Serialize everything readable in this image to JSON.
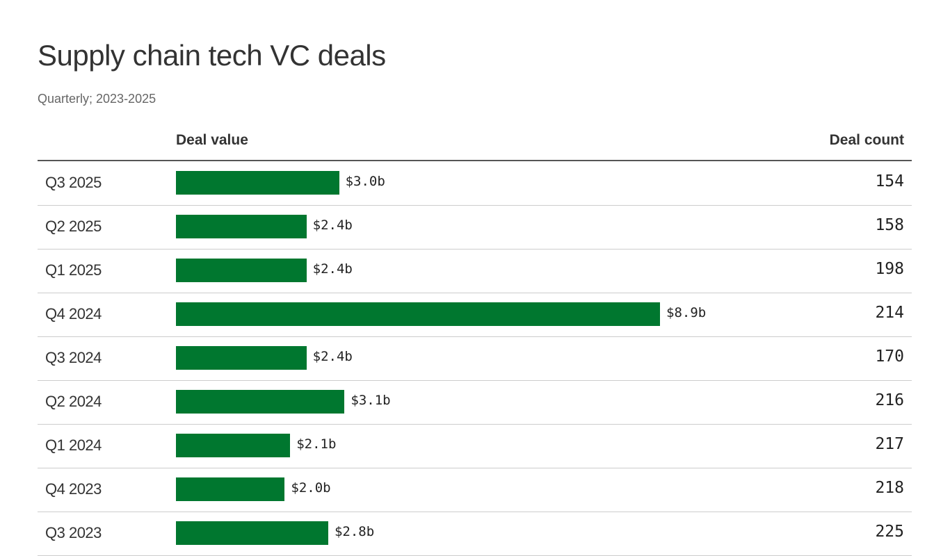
{
  "chart_data": {
    "type": "bar",
    "title": "Supply chain tech VC deals",
    "subtitle": "Quarterly; 2023-2025",
    "columns": {
      "value": "Deal value",
      "count": "Deal count"
    },
    "categories": [
      "Q3 2025",
      "Q2 2025",
      "Q1 2025",
      "Q4 2024",
      "Q3 2024",
      "Q2 2024",
      "Q1 2024",
      "Q4 2023",
      "Q3 2023"
    ],
    "values": [
      3.0,
      2.4,
      2.4,
      8.9,
      2.4,
      3.1,
      2.1,
      2.0,
      2.8
    ],
    "value_labels": [
      "$3.0b",
      "$2.4b",
      "$2.4b",
      "$8.9b",
      "$2.4b",
      "$3.1b",
      "$2.1b",
      "$2.0b",
      "$2.8b"
    ],
    "counts": [
      154,
      158,
      198,
      214,
      170,
      216,
      217,
      218,
      225
    ],
    "unit": "$b",
    "bar_color": "#00772f",
    "orientation": "horizontal",
    "grid": false,
    "legend": "none"
  }
}
